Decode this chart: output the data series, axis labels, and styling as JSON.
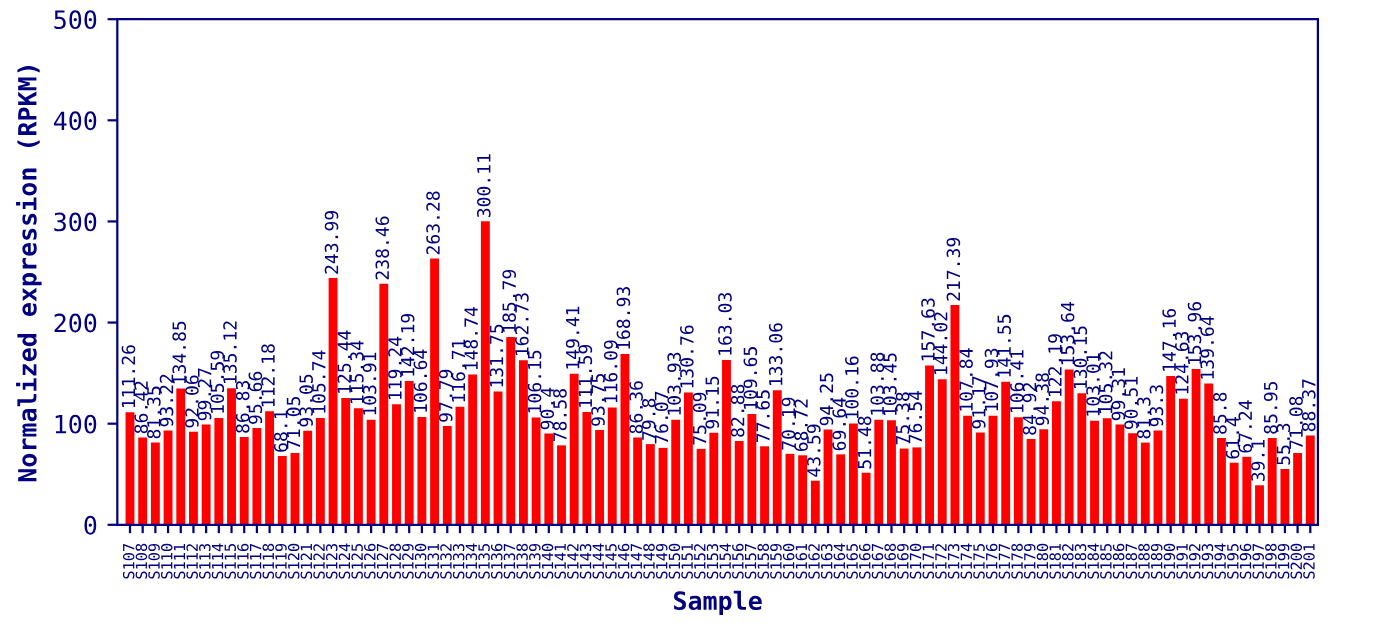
{
  "chart_data": {
    "type": "bar",
    "xlabel": "Sample",
    "ylabel": "Normalized expression (RPKM)",
    "categories": [
      "S107",
      "S108",
      "S109",
      "S110",
      "S111",
      "S112",
      "S113",
      "S114",
      "S115",
      "S116",
      "S117",
      "S118",
      "S119",
      "S120",
      "S121",
      "S122",
      "S123",
      "S124",
      "S125",
      "S126",
      "S127",
      "S128",
      "S129",
      "S130",
      "S131",
      "S132",
      "S133",
      "S134",
      "S135",
      "S136",
      "S137",
      "S138",
      "S139",
      "S140",
      "S141",
      "S142",
      "S143",
      "S144",
      "S145",
      "S146",
      "S147",
      "S148",
      "S149",
      "S150",
      "S151",
      "S152",
      "S153",
      "S154",
      "S156",
      "S157",
      "S158",
      "S159",
      "S160",
      "S161",
      "S162",
      "S163",
      "S164",
      "S165",
      "S166",
      "S167",
      "S168",
      "S169",
      "S170",
      "S171",
      "S172",
      "S173",
      "S174",
      "S175",
      "S176",
      "S177",
      "S178",
      "S179",
      "S180",
      "S181",
      "S182",
      "S183",
      "S184",
      "S185",
      "S186",
      "S187",
      "S188",
      "S189",
      "S190",
      "S191",
      "S192",
      "S193",
      "S194",
      "S195",
      "S196",
      "S197",
      "S198",
      "S199",
      "S200",
      "S201"
    ],
    "values": [
      111.26,
      86.42,
      81.35,
      93.22,
      134.85,
      92.06,
      99.27,
      105.59,
      135.12,
      86.83,
      95.66,
      112.18,
      68.1,
      71.05,
      93.05,
      105.74,
      243.99,
      125.44,
      115.34,
      103.91,
      238.46,
      119.24,
      142.19,
      106.64,
      263.28,
      97.79,
      116.71,
      148.74,
      300.11,
      131.75,
      185.79,
      162.73,
      106.15,
      90.4,
      78.58,
      149.41,
      111.59,
      93.75,
      116.09,
      168.93,
      86.36,
      79.8,
      76.07,
      103.93,
      130.76,
      75.09,
      91.15,
      163.03,
      82.88,
      109.65,
      77.65,
      133.06,
      70.19,
      68.72,
      43.59,
      94.25,
      69.64,
      100.16,
      51.48,
      103.88,
      103.45,
      75.38,
      76.54,
      157.63,
      144.02,
      217.39,
      107.84,
      91.17,
      107.93,
      141.55,
      106.41,
      84.92,
      94.38,
      122.19,
      153.64,
      130.15,
      103.01,
      105.32,
      99.31,
      90.51,
      81.3,
      93.3,
      147.16,
      124.63,
      153.96,
      139.64,
      85.8,
      61.4,
      67.24,
      39.1,
      85.95,
      55.3,
      71.08,
      88.37
    ],
    "color": "#ff0000",
    "data_labels": true,
    "ylim": [
      0,
      500
    ],
    "yticks": [
      0,
      100,
      200,
      300,
      400,
      500
    ],
    "grid": false,
    "legend": false
  }
}
